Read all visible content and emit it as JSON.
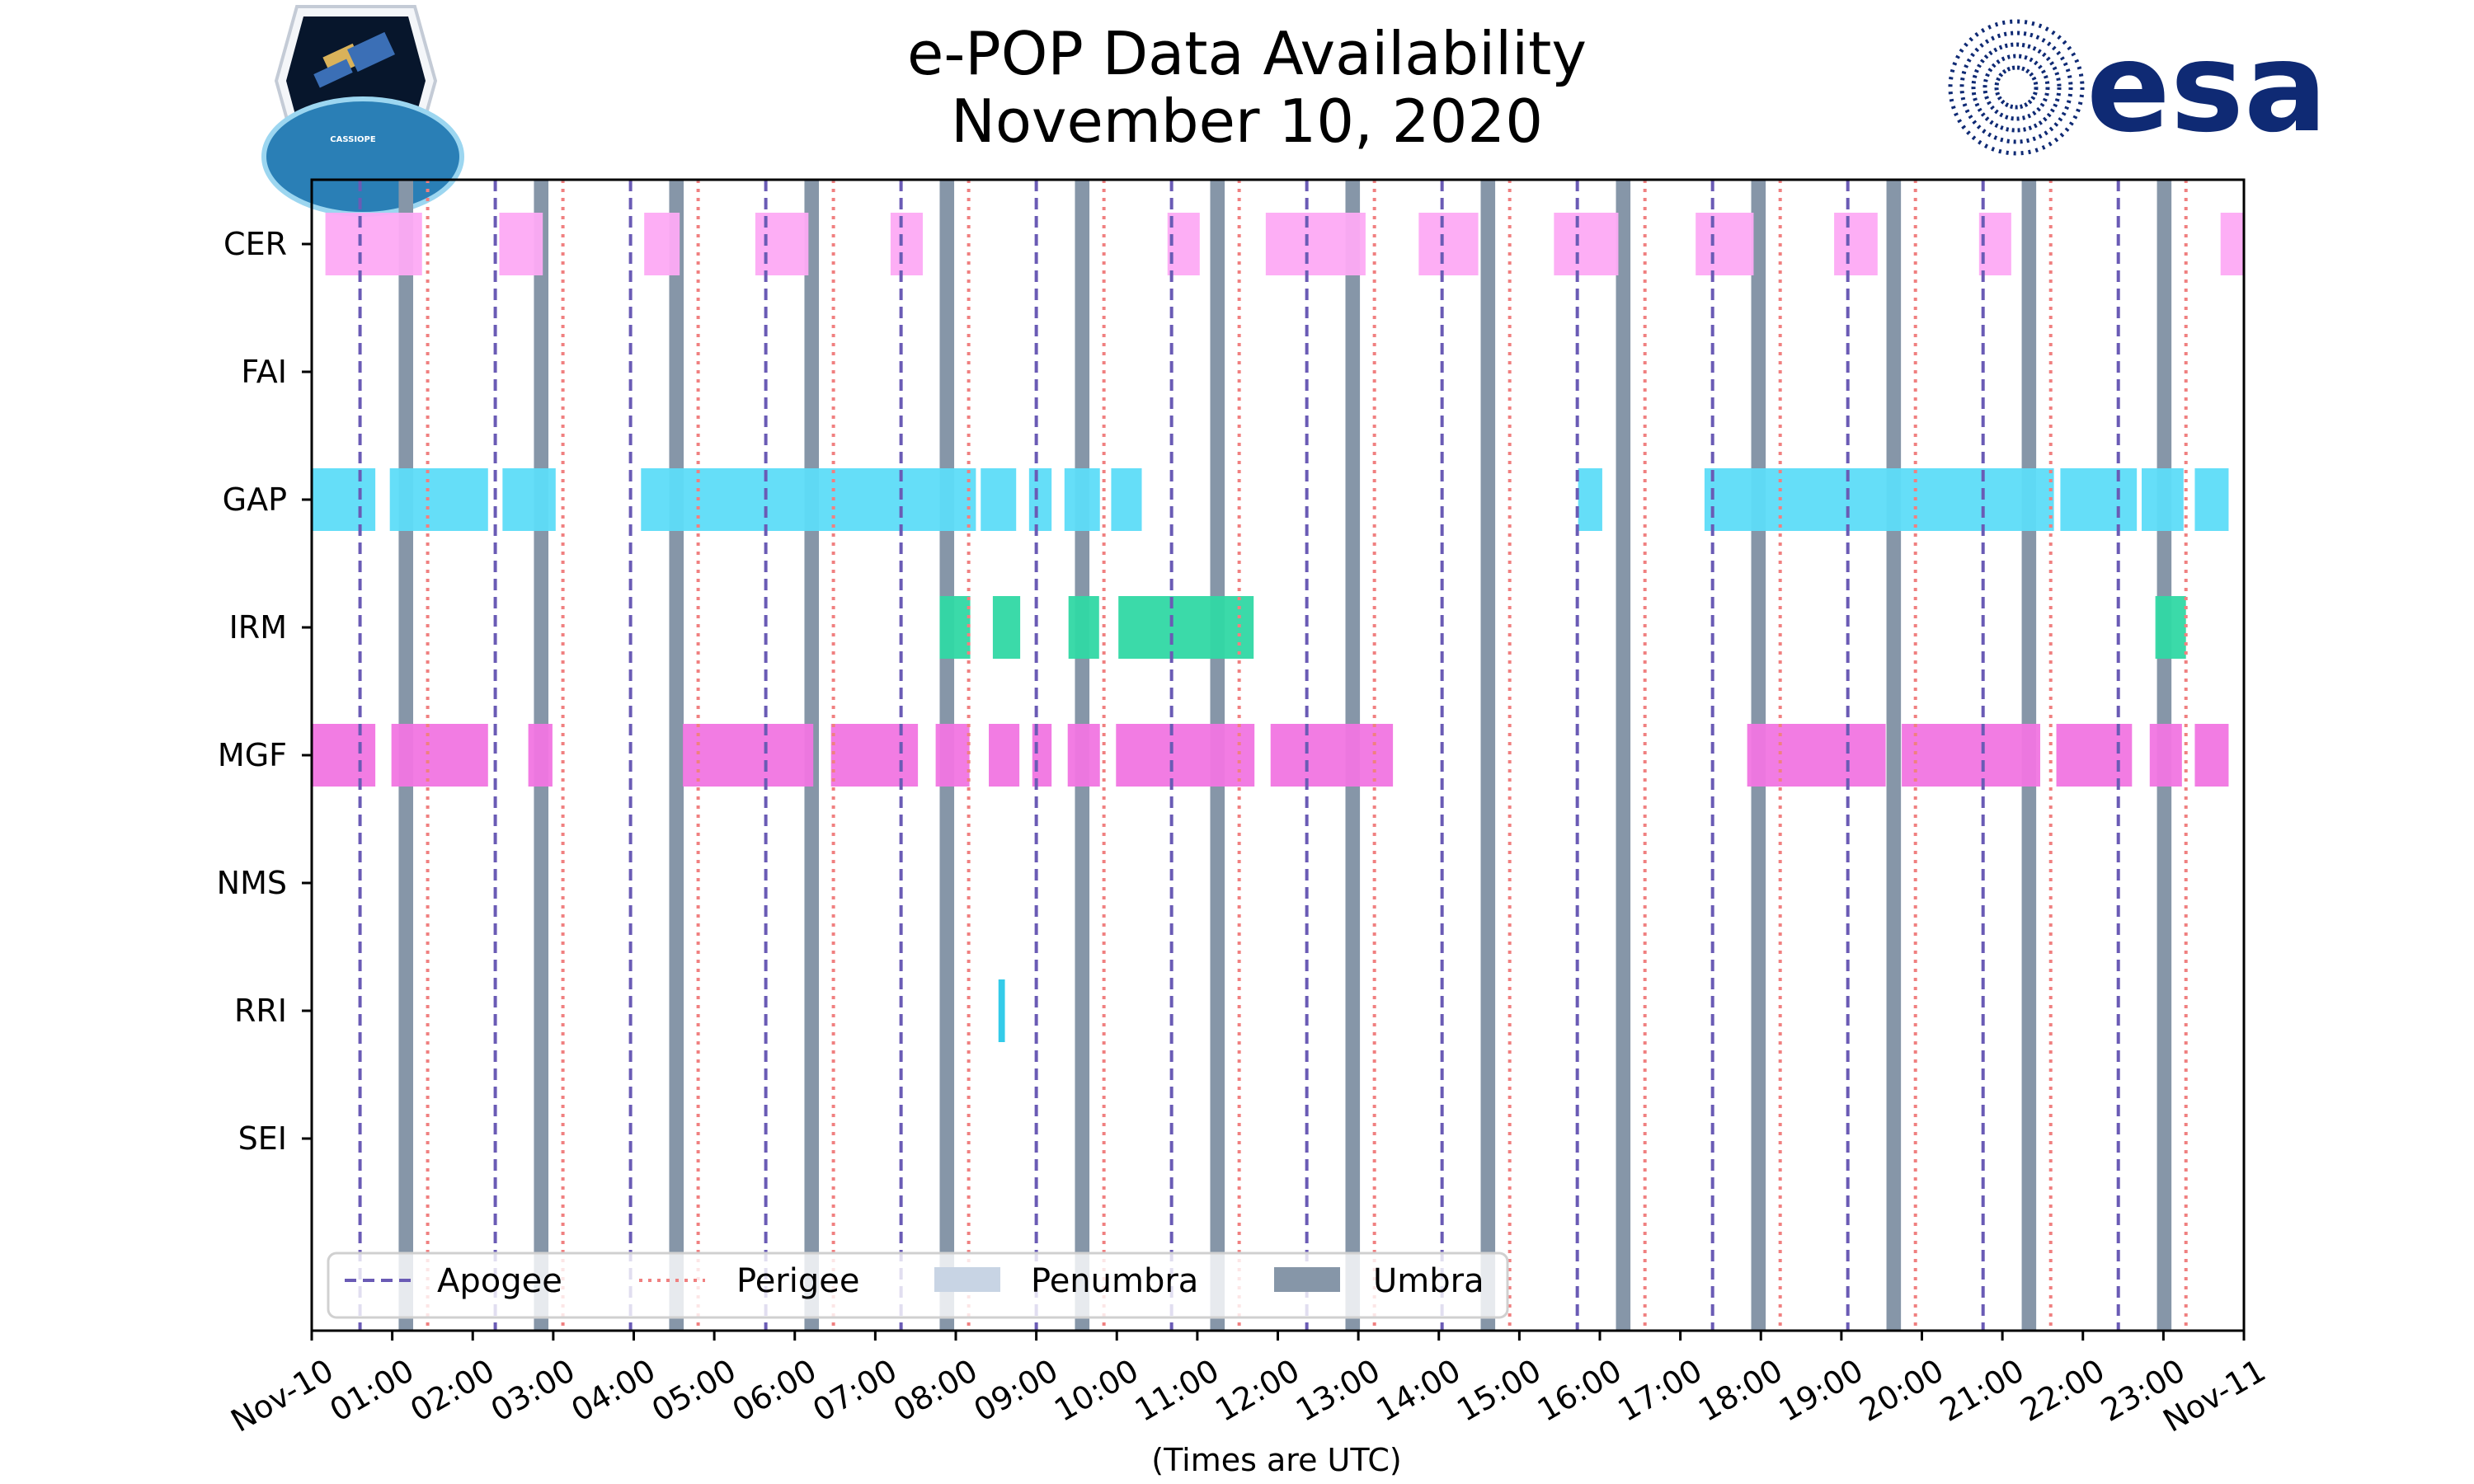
{
  "colors": {
    "apogee": "#6a5bb5",
    "perigee": "#f08080",
    "penumbra": "#c8d4e4",
    "umbra": "#8696a8",
    "CER": "#fdaaf4",
    "FAI": "#cccccc",
    "GAP": "#5ddcf8",
    "IRM": "#30d8a4",
    "MGF": "#f175e2",
    "NMS": "#cccccc",
    "RRI": "#29c8e8",
    "SEI": "#cccccc",
    "esa_blue": "#0f2a74"
  },
  "logos": {
    "mission_logo_icon": "satellite-hexagon-icon",
    "mission_logo_text": "CASSIOPE",
    "agency_logo_icon": "esa-swirl-icon",
    "agency_logo_text": "esa"
  },
  "chart_data": {
    "type": "timeline",
    "title": [
      "e-POP Data Availability",
      "November 10, 2020"
    ],
    "xlabel": "(Times are UTC)",
    "ylabel": "",
    "x_units": "hours UTC",
    "xlim": [
      0,
      24
    ],
    "x_ticks": [
      0,
      1,
      2,
      3,
      4,
      5,
      6,
      7,
      8,
      9,
      10,
      11,
      12,
      13,
      14,
      15,
      16,
      17,
      18,
      19,
      20,
      21,
      22,
      23,
      24
    ],
    "x_tick_labels": [
      "Nov-10",
      "01:00",
      "02:00",
      "03:00",
      "04:00",
      "05:00",
      "06:00",
      "07:00",
      "08:00",
      "09:00",
      "10:00",
      "11:00",
      "12:00",
      "13:00",
      "14:00",
      "15:00",
      "16:00",
      "17:00",
      "18:00",
      "19:00",
      "20:00",
      "21:00",
      "22:00",
      "23:00",
      "Nov-11"
    ],
    "instruments": [
      "CER",
      "FAI",
      "GAP",
      "IRM",
      "MGF",
      "NMS",
      "RRI",
      "SEI"
    ],
    "apogee": [
      0.6,
      2.28,
      3.96,
      5.64,
      7.32,
      9.0,
      10.68,
      12.36,
      14.04,
      15.72,
      17.4,
      19.08,
      20.76,
      22.44
    ],
    "perigee": [
      1.44,
      3.12,
      4.8,
      6.48,
      8.16,
      9.84,
      11.52,
      13.2,
      14.88,
      16.56,
      18.24,
      19.92,
      21.6,
      23.28
    ],
    "umbra": [
      [
        1.08,
        1.26
      ],
      [
        2.76,
        2.94
      ],
      [
        4.44,
        4.62
      ],
      [
        6.12,
        6.3
      ],
      [
        7.8,
        7.98
      ],
      [
        9.48,
        9.66
      ],
      [
        11.16,
        11.34
      ],
      [
        12.84,
        13.02
      ],
      [
        14.52,
        14.7
      ],
      [
        16.2,
        16.38
      ],
      [
        17.88,
        18.06
      ],
      [
        19.56,
        19.74
      ],
      [
        21.24,
        21.42
      ],
      [
        22.92,
        23.1
      ]
    ],
    "penumbra": [],
    "legend": [
      "Apogee",
      "Perigee",
      "Penumbra",
      "Umbra"
    ],
    "legend_location": "lower-left",
    "series": [
      {
        "name": "CER",
        "intervals": [
          [
            0.17,
            1.37
          ],
          [
            2.33,
            2.87
          ],
          [
            4.13,
            4.57
          ],
          [
            5.51,
            6.17
          ],
          [
            7.19,
            7.59
          ],
          [
            10.63,
            11.03
          ],
          [
            11.85,
            13.09
          ],
          [
            13.75,
            14.49
          ],
          [
            15.43,
            16.23
          ],
          [
            17.19,
            17.91
          ],
          [
            18.91,
            19.45
          ],
          [
            20.71,
            21.11
          ],
          [
            23.71,
            24.0
          ]
        ]
      },
      {
        "name": "FAI",
        "intervals": []
      },
      {
        "name": "GAP",
        "intervals": [
          [
            0.0,
            0.79
          ],
          [
            0.97,
            2.19
          ],
          [
            2.37,
            3.03
          ],
          [
            4.09,
            8.25
          ],
          [
            8.31,
            8.75
          ],
          [
            8.91,
            9.19
          ],
          [
            9.35,
            9.79
          ],
          [
            9.93,
            10.31
          ],
          [
            15.73,
            16.03
          ],
          [
            17.3,
            21.64
          ],
          [
            21.72,
            22.67
          ],
          [
            22.73,
            23.25
          ],
          [
            23.39,
            23.81
          ]
        ]
      },
      {
        "name": "IRM",
        "intervals": [
          [
            7.8,
            8.18
          ],
          [
            8.46,
            8.8
          ],
          [
            9.4,
            9.78
          ],
          [
            10.02,
            11.7
          ],
          [
            22.9,
            23.28
          ]
        ]
      },
      {
        "name": "MGF",
        "intervals": [
          [
            0.0,
            0.79
          ],
          [
            0.99,
            2.19
          ],
          [
            2.69,
            2.99
          ],
          [
            4.61,
            6.23
          ],
          [
            6.45,
            7.53
          ],
          [
            7.75,
            8.17
          ],
          [
            8.41,
            8.79
          ],
          [
            8.95,
            9.19
          ],
          [
            9.39,
            9.79
          ],
          [
            9.99,
            11.71
          ],
          [
            11.91,
            13.43
          ],
          [
            17.83,
            19.55
          ],
          [
            19.75,
            21.47
          ],
          [
            21.67,
            22.61
          ],
          [
            22.83,
            23.23
          ],
          [
            23.39,
            23.81
          ]
        ]
      },
      {
        "name": "NMS",
        "intervals": []
      },
      {
        "name": "RRI",
        "intervals": [
          [
            8.53,
            8.61
          ]
        ]
      },
      {
        "name": "SEI",
        "intervals": []
      }
    ]
  }
}
